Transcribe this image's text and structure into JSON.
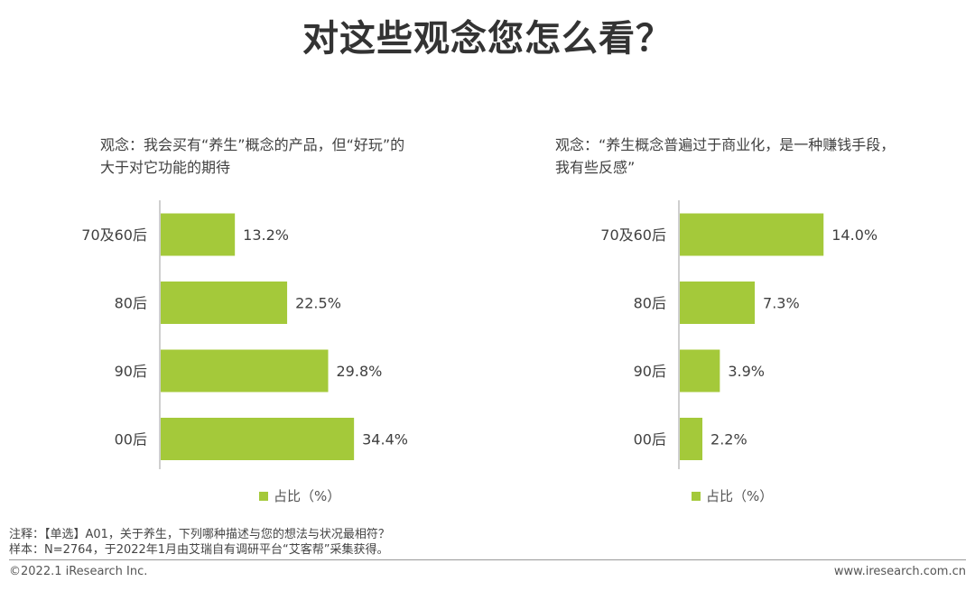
{
  "title": "对这些观念您怎么看？",
  "chart_data": [
    {
      "type": "bar",
      "orientation": "horizontal",
      "title": "观念：我会买有“养生”概念的产品，但“好玩”的大于对它功能的期待",
      "categories": [
        "70及60后",
        "80后",
        "90后",
        "00后"
      ],
      "series": [
        {
          "name": "占比（%）",
          "values": [
            13.2,
            22.5,
            29.8,
            34.4
          ]
        }
      ],
      "value_labels": [
        "13.2%",
        "22.5%",
        "29.8%",
        "34.4%"
      ],
      "xlim": [
        0,
        40
      ],
      "legend": "bottom",
      "grid": false,
      "bar_color": "#a4c93a"
    },
    {
      "type": "bar",
      "orientation": "horizontal",
      "title": "观念：“养生概念普遍过于商业化，是一种赚钱手段，我有些反感”",
      "categories": [
        "70及60后",
        "80后",
        "90后",
        "00后"
      ],
      "series": [
        {
          "name": "占比（%）",
          "values": [
            14.0,
            7.3,
            3.9,
            2.2
          ]
        }
      ],
      "value_labels": [
        "14.0%",
        "7.3%",
        "3.9%",
        "2.2%"
      ],
      "xlim": [
        0,
        40
      ],
      "legend": "bottom",
      "grid": false,
      "bar_color": "#a4c93a"
    }
  ],
  "footnotes": {
    "note": "注释：【单选】A01，关于养生，下列哪种描述与您的想法与状况最相符？",
    "sample": "样本：N=2764，于2022年1月由艾瑞自有调研平台“艾客帮”采集获得。"
  },
  "footer": {
    "copyright": "©2022.1 iResearch Inc.",
    "url": "www.iresearch.com.cn"
  }
}
